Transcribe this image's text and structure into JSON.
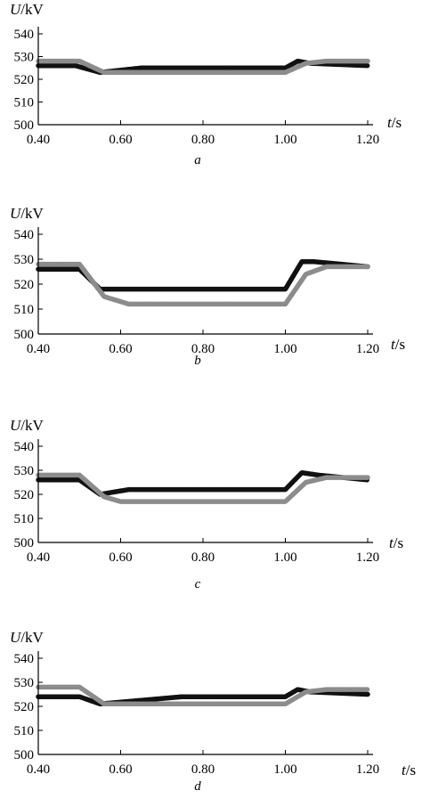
{
  "colors": {
    "black_series": "#111111",
    "gray_series": "#8c8c8c",
    "axis": "#000000"
  },
  "chart_data": [
    {
      "type": "line",
      "caption": "a",
      "ylabel_var": "U",
      "ylabel_unit": "/kV",
      "xlabel_var": "t",
      "xlabel_unit": "/s",
      "xlim": [
        0.4,
        1.2
      ],
      "ylim": [
        500,
        540
      ],
      "xticks": [
        "0.40",
        "0.60",
        "0.80",
        "1.00",
        "1.20"
      ],
      "yticks": [
        "500",
        "510",
        "520",
        "530",
        "540"
      ],
      "grid": false,
      "series": [
        {
          "color": "black",
          "x": [
            0.4,
            0.49,
            0.55,
            0.65,
            1.0,
            1.03,
            1.06,
            1.2
          ],
          "y": [
            526,
            526,
            523,
            525,
            525,
            528,
            527,
            526
          ]
        },
        {
          "color": "gray",
          "x": [
            0.4,
            0.5,
            0.56,
            0.65,
            1.0,
            1.05,
            1.1,
            1.2
          ],
          "y": [
            528,
            528,
            523,
            523,
            523,
            527,
            528,
            528
          ]
        }
      ]
    },
    {
      "type": "line",
      "caption": "b",
      "ylabel_var": "U",
      "ylabel_unit": "/kV",
      "xlabel_var": "t",
      "xlabel_unit": "/s",
      "xlim": [
        0.4,
        1.2
      ],
      "ylim": [
        500,
        540
      ],
      "xticks": [
        "0.40",
        "0.60",
        "0.80",
        "1.00",
        "1.20"
      ],
      "yticks": [
        "500",
        "510",
        "520",
        "530",
        "540"
      ],
      "grid": false,
      "series": [
        {
          "color": "black",
          "x": [
            0.4,
            0.5,
            0.55,
            0.6,
            1.0,
            1.04,
            1.07,
            1.2
          ],
          "y": [
            526,
            526,
            518,
            518,
            518,
            529,
            529,
            527
          ]
        },
        {
          "color": "gray",
          "x": [
            0.4,
            0.5,
            0.56,
            0.62,
            1.0,
            1.05,
            1.1,
            1.2
          ],
          "y": [
            528,
            528,
            515,
            512,
            512,
            524,
            527,
            527
          ]
        }
      ]
    },
    {
      "type": "line",
      "caption": "c",
      "ylabel_var": "U",
      "ylabel_unit": "/kV",
      "xlabel_var": "t",
      "xlabel_unit": "/s",
      "xlim": [
        0.4,
        1.2
      ],
      "ylim": [
        500,
        540
      ],
      "xticks": [
        "0.40",
        "0.60",
        "0.80",
        "1.00",
        "1.20"
      ],
      "yticks": [
        "500",
        "510",
        "520",
        "530",
        "540"
      ],
      "grid": false,
      "series": [
        {
          "color": "black",
          "x": [
            0.4,
            0.5,
            0.55,
            0.62,
            1.0,
            1.04,
            1.08,
            1.2
          ],
          "y": [
            526,
            526,
            520,
            522,
            522,
            529,
            528,
            526
          ]
        },
        {
          "color": "gray",
          "x": [
            0.4,
            0.5,
            0.56,
            0.6,
            1.0,
            1.05,
            1.1,
            1.2
          ],
          "y": [
            528,
            528,
            519,
            517,
            517,
            525,
            527,
            527
          ]
        }
      ]
    },
    {
      "type": "line",
      "caption": "d",
      "ylabel_var": "U",
      "ylabel_unit": "/kV",
      "xlabel_var": "t",
      "xlabel_unit": "/s",
      "xlim": [
        0.4,
        1.2
      ],
      "ylim": [
        500,
        540
      ],
      "xticks": [
        "0.40",
        "0.60",
        "0.80",
        "1.00",
        "1.20"
      ],
      "yticks": [
        "500",
        "510",
        "520",
        "530",
        "540"
      ],
      "grid": false,
      "series": [
        {
          "color": "black",
          "x": [
            0.4,
            0.5,
            0.55,
            0.75,
            1.0,
            1.03,
            1.06,
            1.2
          ],
          "y": [
            524,
            524,
            521,
            524,
            524,
            527,
            526,
            525
          ]
        },
        {
          "color": "gray",
          "x": [
            0.4,
            0.5,
            0.56,
            0.62,
            1.0,
            1.05,
            1.1,
            1.2
          ],
          "y": [
            528,
            528,
            521,
            521,
            521,
            526,
            527,
            527
          ]
        }
      ]
    }
  ]
}
